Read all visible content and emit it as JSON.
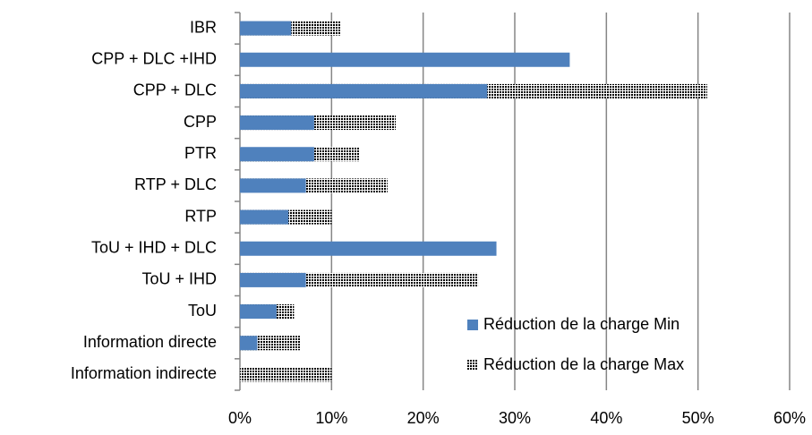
{
  "chart_data": {
    "type": "bar",
    "orientation": "horizontal",
    "categories": [
      "IBR",
      "CPP + DLC +IHD",
      "CPP + DLC",
      "CPP",
      "PTR",
      "RTP + DLC",
      "RTP",
      "ToU + IHD + DLC",
      "ToU + IHD",
      "ToU",
      "Information directe",
      "Information indirecte"
    ],
    "series": [
      {
        "name": "Réduction de la charge Min",
        "color": "#4f81bd",
        "values": [
          5.6,
          36,
          27,
          8.1,
          8.1,
          7.2,
          5.3,
          28,
          7.2,
          4.0,
          1.9,
          0
        ]
      },
      {
        "name": "Réduction de la charge Max",
        "color": "#9fb9dc",
        "values": [
          11,
          null,
          51,
          17,
          13,
          16.1,
          10,
          null,
          26,
          5.9,
          6.6,
          10
        ]
      }
    ],
    "xlim": [
      0,
      60
    ],
    "xticks": [
      {
        "value": 0,
        "label": "0%"
      },
      {
        "value": 10,
        "label": "10%"
      },
      {
        "value": 20,
        "label": "20%"
      },
      {
        "value": 30,
        "label": "30%"
      },
      {
        "value": 40,
        "label": "40%"
      },
      {
        "value": 50,
        "label": "50%"
      },
      {
        "value": 60,
        "label": "60%"
      }
    ],
    "grid": true,
    "legend": "lower right"
  }
}
